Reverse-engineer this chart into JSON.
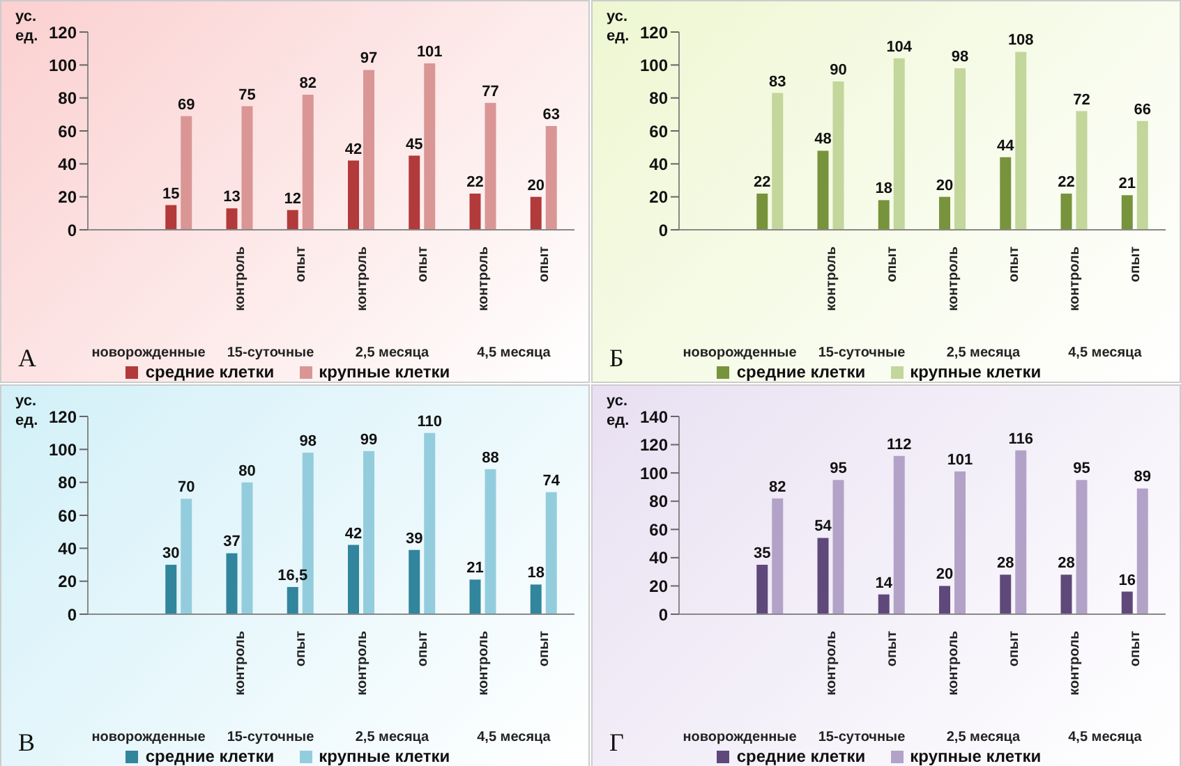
{
  "chart_data": [
    {
      "type": "bar",
      "title": "А",
      "ylabel": "ус. ед.",
      "categories": [
        null,
        null,
        "контроль",
        "опыт",
        "контроль",
        "опыт",
        "контроль",
        "опыт"
      ],
      "annotations": [
        "новорожденные",
        "15-суточные",
        "2,5 месяца",
        "4,5 месяца"
      ],
      "ylim": [
        0,
        120
      ],
      "yticks": [
        0,
        20,
        40,
        60,
        80,
        100,
        120
      ],
      "grid": false,
      "legend": "bottom",
      "data_labels": true,
      "series": [
        {
          "name": "средние клетки",
          "color": "#b23a3a",
          "values": [
            null,
            15,
            13,
            12,
            42,
            45,
            22,
            20
          ]
        },
        {
          "name": "крупные клетки",
          "color": "#d99694",
          "values": [
            null,
            69,
            75,
            82,
            97,
            101,
            77,
            63
          ]
        }
      ]
    },
    {
      "type": "bar",
      "title": "Б",
      "ylabel": "ус. ед.",
      "categories": [
        null,
        null,
        "контроль",
        "опыт",
        "контроль",
        "опыт",
        "контроль",
        "опыт"
      ],
      "annotations": [
        "новорожденные",
        "15-суточные",
        "2,5 месяца",
        "4,5 месяца"
      ],
      "ylim": [
        0,
        120
      ],
      "yticks": [
        0,
        20,
        40,
        60,
        80,
        100,
        120
      ],
      "grid": false,
      "legend": "bottom",
      "data_labels": true,
      "series": [
        {
          "name": "средние клетки",
          "color": "#77933c",
          "values": [
            null,
            22,
            48,
            18,
            20,
            44,
            22,
            21
          ]
        },
        {
          "name": "крупные клетки",
          "color": "#c3d69b",
          "values": [
            null,
            83,
            90,
            104,
            98,
            108,
            72,
            66
          ]
        }
      ]
    },
    {
      "type": "bar",
      "title": "В",
      "ylabel": "ус. ед.",
      "categories": [
        null,
        null,
        "контроль",
        "опыт",
        "контроль",
        "опыт",
        "контроль",
        "опыт"
      ],
      "annotations": [
        "новорожденные",
        "15-суточные",
        "2,5 месяца",
        "4,5 месяца"
      ],
      "ylim": [
        0,
        120
      ],
      "yticks": [
        0,
        20,
        40,
        60,
        80,
        100,
        120
      ],
      "grid": false,
      "legend": "bottom",
      "series": [
        {
          "name": "средние клетки",
          "color": "#31859c",
          "values": [
            null,
            30,
            37,
            16.5,
            42,
            39,
            21,
            18
          ],
          "value_labels": [
            null,
            "30",
            "37",
            "16,5",
            "42",
            "39",
            "21",
            "18"
          ]
        },
        {
          "name": "крупные клетки",
          "color": "#93cddd",
          "values": [
            null,
            70,
            80,
            98,
            99,
            110,
            88,
            74
          ],
          "value_labels": [
            null,
            "70",
            "80",
            "98",
            "99",
            "110",
            "88",
            "74"
          ]
        }
      ]
    },
    {
      "type": "bar",
      "title": "Г",
      "ylabel": "ус. ед.",
      "categories": [
        null,
        null,
        "контроль",
        "опыт",
        "контроль",
        "опыт",
        "контроль",
        "опыт"
      ],
      "annotations": [
        "новорожденные",
        "15-суточные",
        "2,5 месяца",
        "4,5 месяца"
      ],
      "ylim": [
        0,
        140
      ],
      "yticks": [
        0,
        20,
        40,
        60,
        80,
        100,
        120,
        140
      ],
      "grid": false,
      "legend": "bottom",
      "data_labels": true,
      "series": [
        {
          "name": "средние клетки",
          "color": "#5f497a",
          "values": [
            null,
            35,
            54,
            14,
            20,
            28,
            28,
            16
          ]
        },
        {
          "name": "крупные клетки",
          "color": "#b3a2c7",
          "values": [
            null,
            82,
            95,
            112,
            101,
            116,
            95,
            89
          ]
        }
      ]
    }
  ]
}
